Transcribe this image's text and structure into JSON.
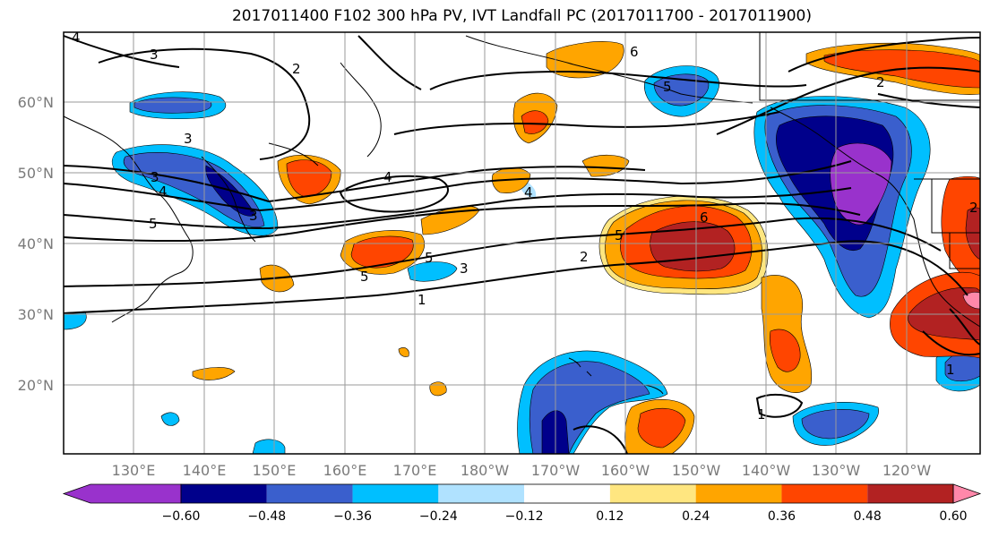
{
  "title": "2017011400 F102 300 hPa PV, IVT Landfall PC (2017011700 - 2017011900)",
  "map": {
    "lat_labels": [
      "60°N",
      "50°N",
      "40°N",
      "30°N",
      "20°N"
    ],
    "lon_labels": [
      "130°E",
      "140°E",
      "150°E",
      "160°E",
      "170°E",
      "180°W",
      "170°W",
      "160°W",
      "150°W",
      "140°W",
      "130°W",
      "120°W"
    ],
    "contour_labels": [
      "4",
      "3",
      "2",
      "6",
      "5",
      "2",
      "3",
      "4",
      "4",
      "5",
      "3",
      "3",
      "5",
      "6",
      "5",
      "2",
      "4",
      "5",
      "3",
      "1",
      "2",
      "1",
      "1"
    ]
  },
  "colorbar": {
    "colors": [
      "#9932cc",
      "#00008b",
      "#3a5fcd",
      "#00bfff",
      "#b0e2ff",
      "#ffffff",
      "#ffe680",
      "#ffa500",
      "#ff4500",
      "#b22222",
      "#ff88aa"
    ],
    "ticks": [
      "−0.60",
      "−0.48",
      "−0.36",
      "−0.24",
      "−0.12",
      "0.12",
      "0.24",
      "0.36",
      "0.48",
      "0.60"
    ]
  }
}
